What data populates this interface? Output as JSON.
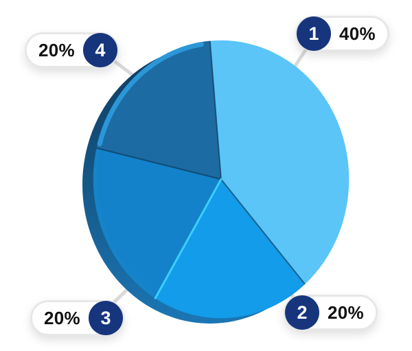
{
  "chart_data": {
    "type": "pie",
    "style": "3d",
    "labels": [
      "1",
      "2",
      "3",
      "4"
    ],
    "values": [
      40,
      20,
      20,
      20
    ],
    "value_labels": [
      "40%",
      "20%",
      "20%",
      "20%"
    ],
    "unit": "%",
    "colors": [
      "#5BC5F7",
      "#129CE9",
      "#1382CB",
      "#1C6BA3"
    ],
    "start_angle_deg": -5,
    "legend_position": "callout-pills-around-pie",
    "effects": {
      "depth_gradient_top": "#0F3A5C",
      "depth_gradient_bottom": "#1B76B4",
      "rim_highlight": "#2E9FE2",
      "rim_highlight_soft": "#1C87C6",
      "divider_dark": "#0B2C47",
      "divider_cyan": "#3FD2FF"
    }
  },
  "callouts": [
    {
      "number": "1",
      "value": "40%"
    },
    {
      "number": "2",
      "value": "20%"
    },
    {
      "number": "3",
      "value": "20%"
    },
    {
      "number": "4",
      "value": "20%"
    }
  ],
  "theme": {
    "background": "#FFFFFF",
    "pill-bg": "#FFFFFF",
    "pill-border": "#E7E7E7",
    "badge-circle": "#17357D",
    "badge-number": "#FFFFFF",
    "callout-text": "#121212",
    "connector": "#D9D9D9"
  }
}
